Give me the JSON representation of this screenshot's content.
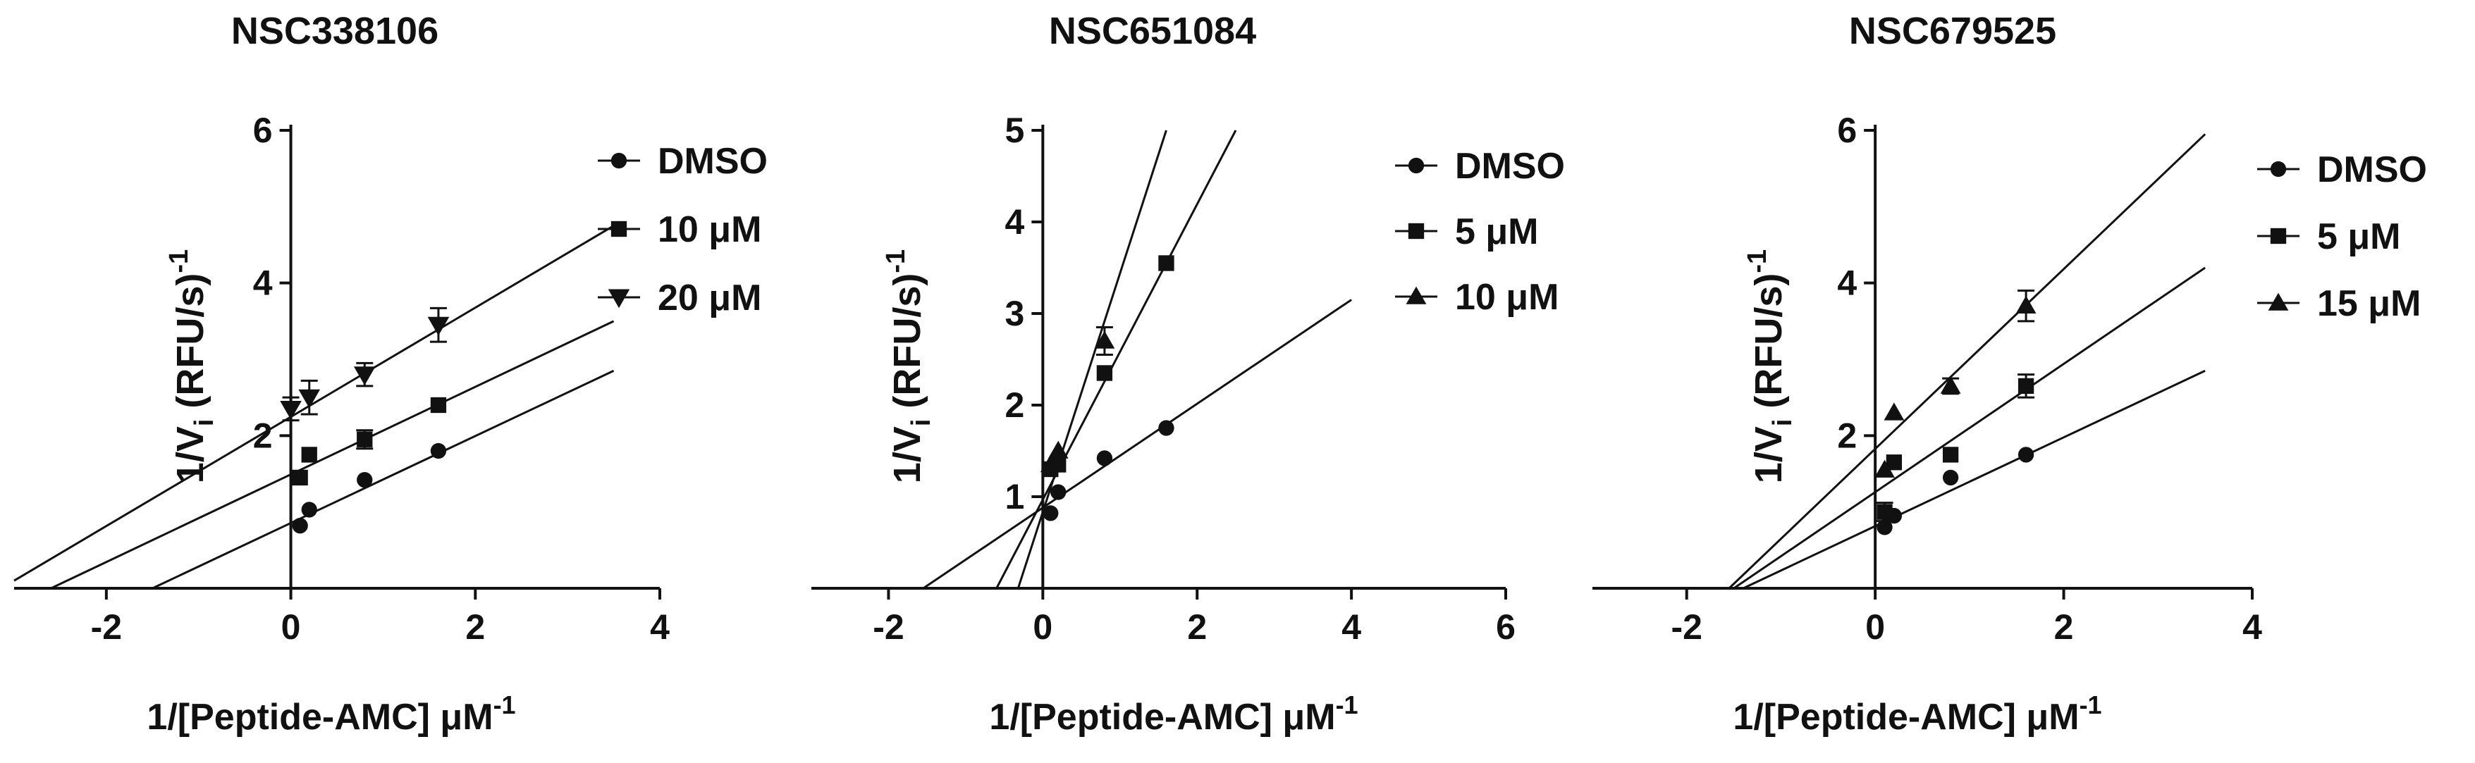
{
  "chart_data": [
    {
      "type": "scatter",
      "title": "NSC338106",
      "xlabel": "1/[Peptide-AMC] μM",
      "xlabel_sup": "-1",
      "ylabel": "1/V",
      "ylabel_sub": "i",
      "ylabel_rest": " (RFU/s)",
      "ylabel_sup": "-1",
      "xlim": [
        -3,
        4
      ],
      "ylim": [
        0,
        6
      ],
      "xticks": [
        -2,
        0,
        2,
        4
      ],
      "yticks": [
        2,
        4,
        6
      ],
      "xtick_labels": [
        "-2",
        "0",
        "2",
        "4"
      ],
      "ytick_labels": [
        "2",
        "4",
        "6"
      ],
      "series": [
        {
          "name": "DMSO",
          "marker": "circle",
          "points": [
            {
              "x": 0.1,
              "y": 0.82
            },
            {
              "x": 0.2,
              "y": 1.03
            },
            {
              "x": 0.8,
              "y": 1.42
            },
            {
              "x": 1.6,
              "y": 1.8
            }
          ],
          "errors": [
            0,
            0,
            0,
            0
          ],
          "fit": {
            "x0": -1.5,
            "x1": 3.5,
            "y0": 0,
            "y1": 2.85
          }
        },
        {
          "name": "10 μM",
          "marker": "square",
          "points": [
            {
              "x": 0.1,
              "y": 1.45
            },
            {
              "x": 0.2,
              "y": 1.75
            },
            {
              "x": 0.8,
              "y": 1.95
            },
            {
              "x": 1.6,
              "y": 2.4
            }
          ],
          "errors": [
            0,
            0,
            0.12,
            0
          ],
          "fit": {
            "x0": -2.6,
            "x1": 3.5,
            "y0": 0,
            "y1": 3.5
          }
        },
        {
          "name": "20 μM",
          "marker": "triangle-down",
          "points": [
            {
              "x": 0.0,
              "y": 2.35
            },
            {
              "x": 0.2,
              "y": 2.5
            },
            {
              "x": 0.8,
              "y": 2.8
            },
            {
              "x": 1.6,
              "y": 3.45
            }
          ],
          "errors": [
            0.15,
            0.22,
            0.15,
            0.22
          ],
          "fit": {
            "x0": -3.0,
            "x1": 3.5,
            "y0": 0.1,
            "y1": 4.75
          }
        }
      ]
    },
    {
      "type": "scatter",
      "title": "NSC651084",
      "xlabel": "1/[Peptide-AMC] μM",
      "xlabel_sup": "-1",
      "ylabel": "1/V",
      "ylabel_sub": "i",
      "ylabel_rest": " (RFU/s)",
      "ylabel_sup": "-1",
      "xlim": [
        -3,
        6
      ],
      "ylim": [
        0,
        5
      ],
      "xticks": [
        -2,
        0,
        2,
        4,
        6
      ],
      "yticks": [
        1,
        2,
        3,
        4,
        5
      ],
      "xtick_labels": [
        "-2",
        "0",
        "2",
        "4",
        "6"
      ],
      "ytick_labels": [
        "1",
        "2",
        "3",
        "4",
        "5"
      ],
      "series": [
        {
          "name": "DMSO",
          "marker": "circle",
          "points": [
            {
              "x": 0.1,
              "y": 0.82
            },
            {
              "x": 0.2,
              "y": 1.05
            },
            {
              "x": 0.8,
              "y": 1.42
            },
            {
              "x": 1.6,
              "y": 1.75
            }
          ],
          "errors": [
            0,
            0,
            0,
            0
          ],
          "fit": {
            "x0": -1.55,
            "x1": 4.0,
            "y0": 0,
            "y1": 3.15
          }
        },
        {
          "name": "5 μM",
          "marker": "square",
          "points": [
            {
              "x": 0.1,
              "y": 1.3
            },
            {
              "x": 0.2,
              "y": 1.35
            },
            {
              "x": 0.8,
              "y": 2.35
            },
            {
              "x": 1.6,
              "y": 3.55
            }
          ],
          "errors": [
            0,
            0,
            0,
            0
          ],
          "fit": {
            "x0": -0.6,
            "x1": 2.5,
            "y0": 0,
            "y1": 5.0
          }
        },
        {
          "name": "10 μM",
          "marker": "triangle",
          "points": [
            {
              "x": 0.1,
              "y": 1.35
            },
            {
              "x": 0.2,
              "y": 1.5
            },
            {
              "x": 0.8,
              "y": 2.7
            }
          ],
          "errors": [
            0,
            0,
            0.15
          ],
          "fit": {
            "x0": -0.32,
            "x1": 1.6,
            "y0": 0,
            "y1": 5.0
          }
        }
      ]
    },
    {
      "type": "scatter",
      "title": "NSC679525",
      "xlabel": "1/[Peptide-AMC] μM",
      "xlabel_sup": "-1",
      "ylabel": "1/V",
      "ylabel_sub": "i",
      "ylabel_rest": " (RFU/s)",
      "ylabel_sup": "-1",
      "xlim": [
        -3,
        4
      ],
      "ylim": [
        0,
        6
      ],
      "xticks": [
        -2,
        0,
        2,
        4
      ],
      "yticks": [
        2,
        4,
        6
      ],
      "xtick_labels": [
        "-2",
        "0",
        "2",
        "4"
      ],
      "ytick_labels": [
        "2",
        "4",
        "6"
      ],
      "series": [
        {
          "name": "DMSO",
          "marker": "circle",
          "points": [
            {
              "x": 0.1,
              "y": 0.8
            },
            {
              "x": 0.2,
              "y": 0.95
            },
            {
              "x": 0.8,
              "y": 1.45
            },
            {
              "x": 1.6,
              "y": 1.75
            }
          ],
          "errors": [
            0,
            0,
            0,
            0
          ],
          "fit": {
            "x0": -1.4,
            "x1": 3.5,
            "y0": 0,
            "y1": 2.85
          }
        },
        {
          "name": "5 μM",
          "marker": "square",
          "points": [
            {
              "x": 0.1,
              "y": 1.0
            },
            {
              "x": 0.2,
              "y": 1.65
            },
            {
              "x": 0.8,
              "y": 1.75
            },
            {
              "x": 1.6,
              "y": 2.65
            }
          ],
          "errors": [
            0.12,
            0,
            0,
            0.15
          ],
          "fit": {
            "x0": -1.5,
            "x1": 3.5,
            "y0": 0,
            "y1": 4.2
          }
        },
        {
          "name": "15 μM",
          "marker": "triangle",
          "points": [
            {
              "x": 0.1,
              "y": 1.55
            },
            {
              "x": 0.2,
              "y": 2.3
            },
            {
              "x": 0.8,
              "y": 2.65
            },
            {
              "x": 1.6,
              "y": 3.7
            }
          ],
          "errors": [
            0,
            0,
            0.1,
            0.2
          ],
          "fit": {
            "x0": -1.55,
            "x1": 3.5,
            "y0": 0,
            "y1": 5.95
          }
        }
      ]
    }
  ]
}
